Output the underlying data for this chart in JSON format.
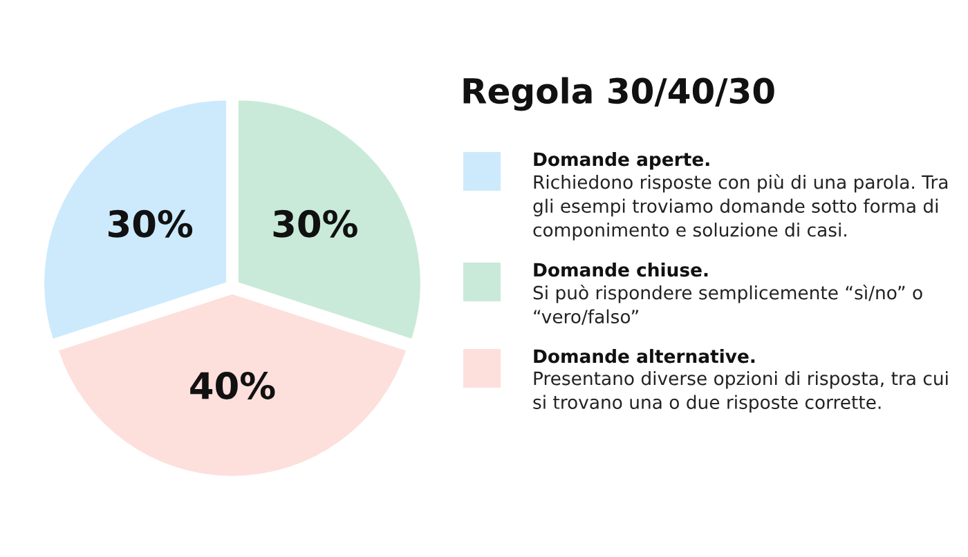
{
  "chart_data": {
    "type": "pie",
    "title": "Regola 30/40/30",
    "categories": [
      "Domande aperte.",
      "Domande chiuse.",
      "Domande alternative."
    ],
    "values": [
      30,
      30,
      40
    ],
    "colors": [
      "#cdeafd",
      "#c9ead8",
      "#fddfdc"
    ],
    "value_labels": [
      "30%",
      "30%",
      "40%"
    ],
    "legend": "right",
    "annotations": [
      "Richiedono risposte con più di una parola. Tra gli esempi troviamo domande sotto forma di componimento e soluzione di casi.",
      "Si può rispondere semplicemente “sì/no” o “vero/falso”",
      "Presentano diverse opzioni di risposta, tra cui si trovano una o due risposte corrette."
    ]
  }
}
